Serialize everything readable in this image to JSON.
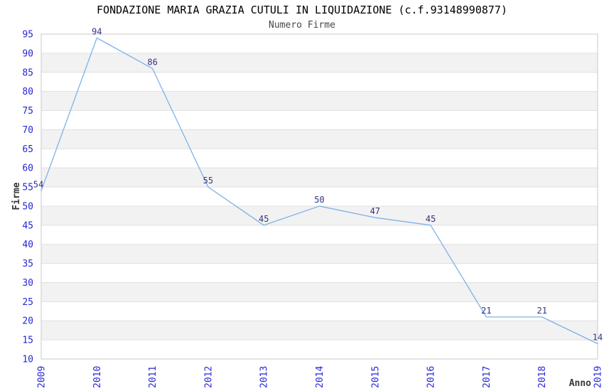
{
  "chart_data": {
    "type": "line",
    "title": "FONDAZIONE MARIA GRAZIA CUTULI IN LIQUIDAZIONE (c.f.93148990877)",
    "subtitle": "Numero Firme",
    "xlabel": "Anno",
    "ylabel": "Firme",
    "x": [
      "2009",
      "2010",
      "2011",
      "2012",
      "2013",
      "2014",
      "2015",
      "2016",
      "2017",
      "2018",
      "2019"
    ],
    "values": [
      54,
      94,
      86,
      55,
      45,
      50,
      47,
      45,
      21,
      21,
      14
    ],
    "ylim": [
      10,
      95
    ],
    "ytick_step": 5,
    "grid": true,
    "legend": "none",
    "colors": {
      "line": "#7fb2e6",
      "tick_labels": "#2626d8",
      "data_labels": "#333388",
      "band_stripe": "#f2f2f2",
      "gridline": "#e0e0e0",
      "plot_border": "#c9c9c9",
      "background": "#ffffff"
    }
  }
}
